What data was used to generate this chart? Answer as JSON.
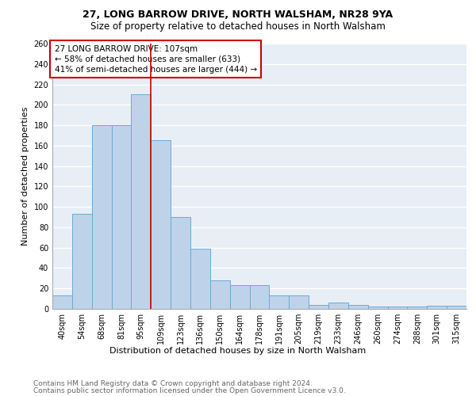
{
  "title1": "27, LONG BARROW DRIVE, NORTH WALSHAM, NR28 9YA",
  "title2": "Size of property relative to detached houses in North Walsham",
  "xlabel": "Distribution of detached houses by size in North Walsham",
  "ylabel": "Number of detached properties",
  "categories": [
    "40sqm",
    "54sqm",
    "68sqm",
    "81sqm",
    "95sqm",
    "109sqm",
    "123sqm",
    "136sqm",
    "150sqm",
    "164sqm",
    "178sqm",
    "191sqm",
    "205sqm",
    "219sqm",
    "233sqm",
    "246sqm",
    "260sqm",
    "274sqm",
    "288sqm",
    "301sqm",
    "315sqm"
  ],
  "values": [
    13,
    93,
    180,
    180,
    210,
    165,
    90,
    59,
    28,
    23,
    23,
    13,
    13,
    4,
    6,
    4,
    2,
    2,
    2,
    3,
    3
  ],
  "bar_color": "#bed3ea",
  "bar_edge_color": "#6aaad4",
  "vline_x": 4.5,
  "vline_color": "#cc0000",
  "annotation_box_text": "27 LONG BARROW DRIVE: 107sqm\n← 58% of detached houses are smaller (633)\n41% of semi-detached houses are larger (444) →",
  "annotation_box_color": "#cc0000",
  "ylim": [
    0,
    260
  ],
  "yticks": [
    0,
    20,
    40,
    60,
    80,
    100,
    120,
    140,
    160,
    180,
    200,
    220,
    240,
    260
  ],
  "background_color": "#e8eef6",
  "grid_color": "#ffffff",
  "footer1": "Contains HM Land Registry data © Crown copyright and database right 2024.",
  "footer2": "Contains public sector information licensed under the Open Government Licence v3.0.",
  "title1_fontsize": 9,
  "title2_fontsize": 8.5,
  "xlabel_fontsize": 8,
  "ylabel_fontsize": 8,
  "tick_fontsize": 7,
  "annotation_fontsize": 7.5,
  "footer_fontsize": 6.5
}
